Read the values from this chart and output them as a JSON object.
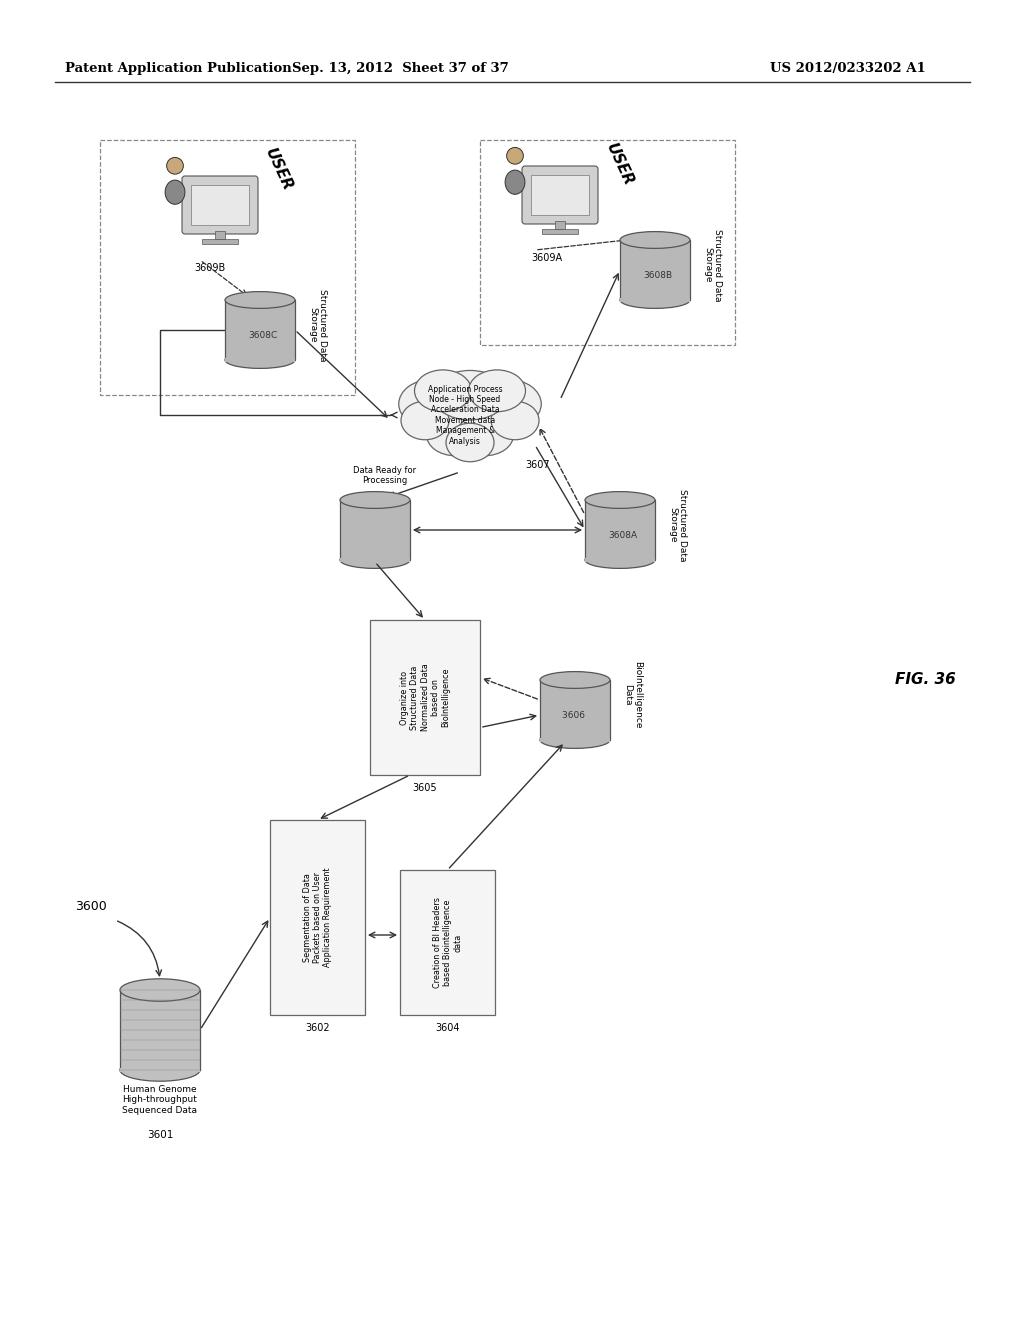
{
  "bg_color": "#ffffff",
  "header_left": "Patent Application Publication",
  "header_mid": "Sep. 13, 2012  Sheet 37 of 37",
  "header_right": "US 2012/0233202 A1",
  "fig_label": "FIG. 36",
  "diagram_label": "3600"
}
